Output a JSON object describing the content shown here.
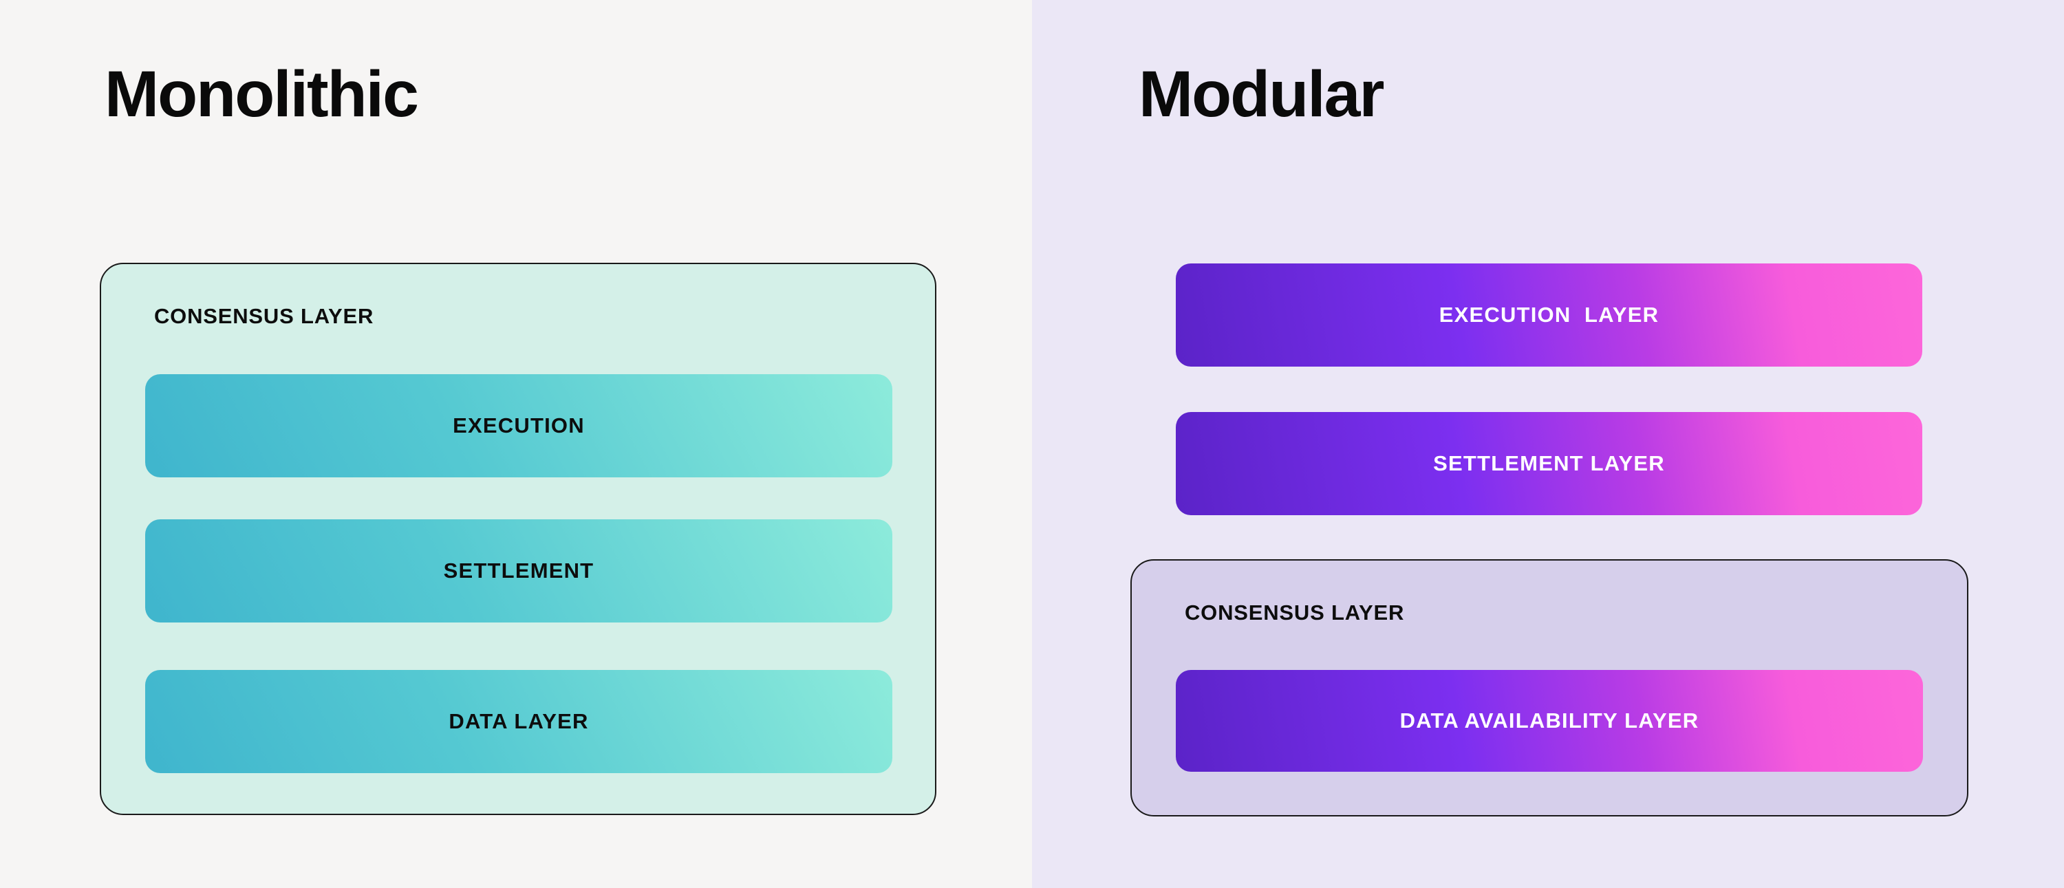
{
  "panels": {
    "monolithic": {
      "title": "Monolithic",
      "bg_color": "#f6f5f4",
      "box": {
        "label": "CONSENSUS LAYER",
        "bg_color": "#d4f0e8",
        "border_color": "#1a1a1a",
        "bar_gradient": [
          "#3fb5cd",
          "#55c9d2",
          "#8debdb"
        ],
        "bar_text_color": "#0d0d0d",
        "bars": [
          {
            "label": "EXECUTION"
          },
          {
            "label": "SETTLEMENT"
          },
          {
            "label": "DATA LAYER"
          }
        ]
      }
    },
    "modular": {
      "title": "Modular",
      "bg_color": "#ebe7f6",
      "bar_gradient": [
        "#5b23c8",
        "#7c2ff0",
        "#b93ce5",
        "#f75cdb",
        "#fd66da"
      ],
      "bar_text_color": "#ffffff",
      "bars": [
        {
          "label": "EXECUTION  LAYER"
        },
        {
          "label": "SETTLEMENT LAYER"
        }
      ],
      "box": {
        "label": "CONSENSUS LAYER",
        "bg_color": "#d6cfeb",
        "border_color": "#1a1a1a",
        "bar": {
          "label": "DATA AVAILABILITY LAYER"
        }
      }
    }
  }
}
